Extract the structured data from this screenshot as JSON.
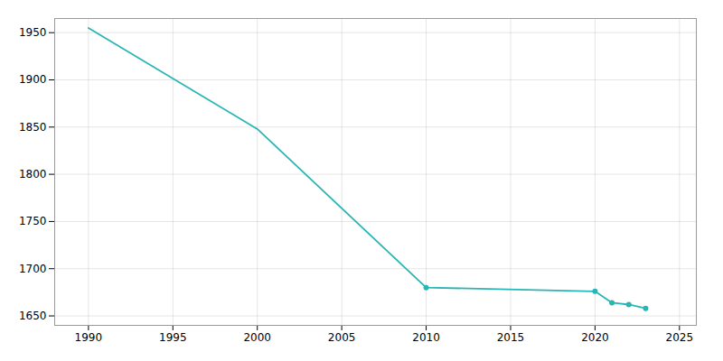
{
  "chart_data": {
    "type": "line",
    "x": [
      1990,
      2000,
      2010,
      2020,
      2021,
      2022,
      2023
    ],
    "values": [
      1955,
      1848,
      1680,
      1676,
      1664,
      1662,
      1658
    ],
    "color": "#2ab5b5",
    "marker": "circle",
    "marker_x": [
      2010,
      2020,
      2021,
      2022,
      2023
    ],
    "xlim": [
      1988,
      2026
    ],
    "xticks": [
      1990,
      1995,
      2000,
      2005,
      2010,
      2015,
      2020,
      2025
    ],
    "ylim": [
      1640,
      1965
    ],
    "yticks": [
      1650,
      1700,
      1750,
      1800,
      1850,
      1900,
      1950
    ],
    "grid": true
  }
}
